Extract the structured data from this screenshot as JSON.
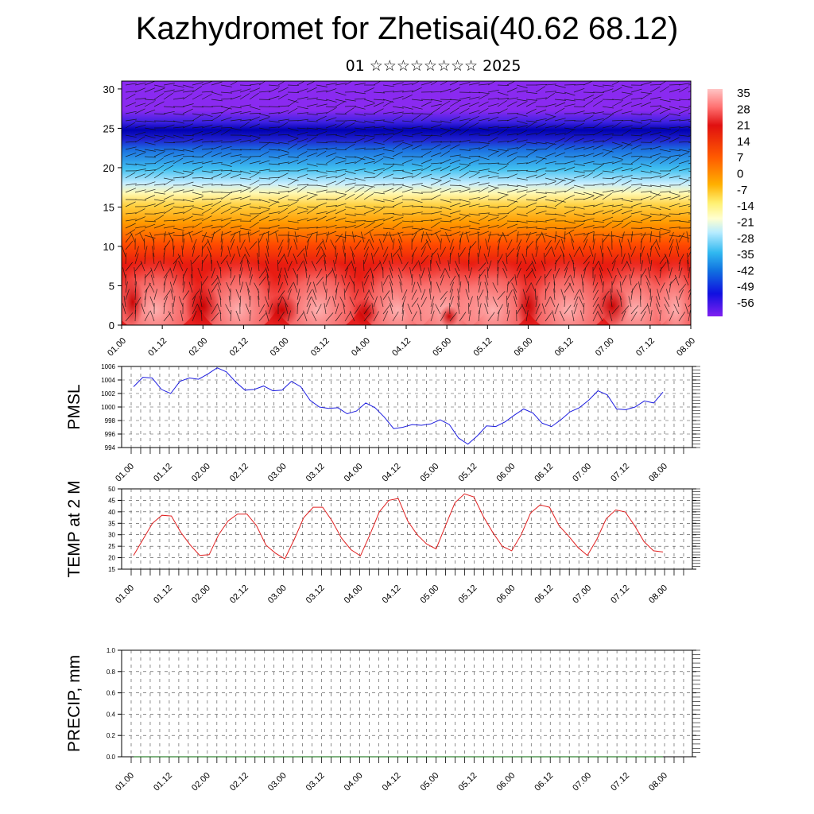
{
  "header": {
    "title": "Kazhydromet for Zhetisai(40.62 68.12)",
    "subtitle": "01 ☆☆☆☆☆☆☆☆ 2025"
  },
  "chart_data": [
    {
      "type": "heatmap",
      "name": "vertical-profile",
      "x_ticks": [
        "01.00",
        "01.12",
        "02.00",
        "02.12",
        "03.00",
        "03.12",
        "04.00",
        "04.12",
        "05.00",
        "05.12",
        "06.00",
        "06.12",
        "07.00",
        "07.12",
        "08.00"
      ],
      "y_ticks": [
        "0",
        "5",
        "10",
        "15",
        "20",
        "25",
        "30"
      ],
      "ylim": [
        0,
        31
      ],
      "colorbar_labels": [
        "35",
        "28",
        "21",
        "14",
        "7",
        "0",
        "-7",
        "-14",
        "-21",
        "-28",
        "-35",
        "-42",
        "-49",
        "-56"
      ],
      "colorbar_range": [
        -63,
        42
      ],
      "overlay": "wind barbs"
    },
    {
      "type": "line",
      "name": "pmsl",
      "ylabel": "PMSL",
      "y_ticks": [
        "1006",
        "1004",
        "1002",
        "1000",
        "998",
        "996",
        "994"
      ],
      "ylim": [
        994,
        1006
      ],
      "x_ticks": [
        "01.00",
        "01.12",
        "02.00",
        "02.12",
        "03.00",
        "03.12",
        "04.00",
        "04.12",
        "05.00",
        "05.12",
        "06.00",
        "06.12",
        "07.00",
        "07.12",
        "08.00"
      ],
      "color": "#1e1ee0",
      "values": [
        1003.0,
        1004.4,
        1004.3,
        1002.6,
        1002.0,
        1003.8,
        1004.3,
        1004.1,
        1004.9,
        1005.8,
        1005.2,
        1003.7,
        1002.5,
        1002.6,
        1003.1,
        1002.4,
        1002.5,
        1003.8,
        1003.0,
        1001.0,
        1000.0,
        999.8,
        999.9,
        999.0,
        999.4,
        1000.6,
        999.9,
        998.5,
        996.8,
        997.0,
        997.4,
        997.3,
        997.5,
        998.1,
        997.4,
        995.4,
        994.5,
        995.7,
        997.2,
        997.1,
        997.8,
        998.8,
        999.7,
        999.1,
        997.6,
        997.1,
        998.1,
        999.3,
        999.9,
        1001.0,
        1002.4,
        1001.8,
        999.7,
        999.6,
        1000.0,
        1000.9,
        1000.6,
        1002.2
      ]
    },
    {
      "type": "line",
      "name": "temp-2m",
      "ylabel": "TEMP at 2 M",
      "y_ticks": [
        "50",
        "45",
        "40",
        "35",
        "30",
        "25",
        "20",
        "15"
      ],
      "ylim": [
        15,
        50
      ],
      "x_ticks": [
        "01.00",
        "01.12",
        "02.00",
        "02.12",
        "03.00",
        "03.12",
        "04.00",
        "04.12",
        "05.00",
        "05.12",
        "06.00",
        "06.12",
        "07.00",
        "07.12",
        "08.00"
      ],
      "color": "#e02020",
      "values": [
        21,
        28,
        35,
        38.5,
        38.2,
        31,
        25.5,
        21,
        21.3,
        30,
        36,
        39,
        39,
        34,
        25.5,
        22,
        19.5,
        28,
        37.5,
        42,
        42,
        36,
        28.5,
        23.5,
        20.8,
        30,
        40,
        45,
        45.8,
        36,
        30,
        26,
        23.8,
        34,
        44,
        47.8,
        46.5,
        38,
        31,
        25,
        23,
        30,
        39.5,
        43,
        42,
        34,
        29.5,
        24.5,
        21,
        28,
        37,
        40.8,
        40,
        34,
        27,
        23,
        22.5
      ]
    },
    {
      "type": "line",
      "name": "precip",
      "ylabel": "PRECIP, mm",
      "y_ticks": [
        "1.0",
        "0.8",
        "0.6",
        "0.4",
        "0.2",
        "0.0"
      ],
      "ylim": [
        0,
        1
      ],
      "x_ticks": [
        "01.00",
        "01.12",
        "02.00",
        "02.12",
        "03.00",
        "03.12",
        "04.00",
        "04.12",
        "05.00",
        "05.12",
        "06.00",
        "06.12",
        "07.00",
        "07.12",
        "08.00"
      ],
      "color": "#006400",
      "values": [
        0,
        0,
        0,
        0,
        0,
        0,
        0,
        0,
        0,
        0,
        0,
        0,
        0,
        0,
        0,
        0,
        0,
        0,
        0,
        0,
        0,
        0,
        0,
        0,
        0,
        0,
        0,
        0,
        0,
        0,
        0,
        0,
        0,
        0,
        0,
        0,
        0,
        0,
        0,
        0,
        0,
        0,
        0,
        0,
        0,
        0,
        0,
        0,
        0,
        0,
        0,
        0,
        0,
        0,
        0,
        0,
        0,
        0
      ]
    }
  ]
}
